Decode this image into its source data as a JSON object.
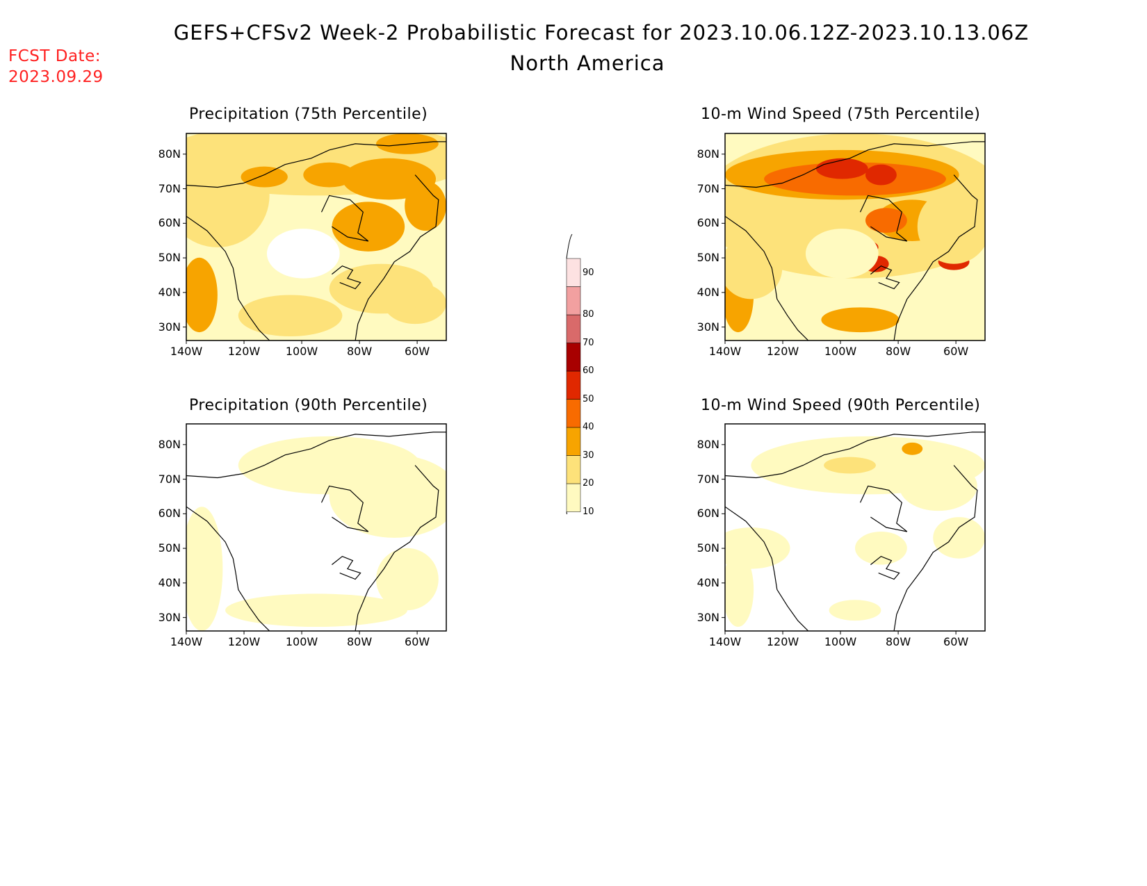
{
  "header": {
    "title": "GEFS+CFSv2 Week-2 Probabilistic Forecast for 2023.10.06.12Z-2023.10.13.06Z",
    "region": "North America",
    "fcst_label": "FCST Date:",
    "fcst_date": "2023.09.29"
  },
  "panels": [
    {
      "id": "p1",
      "title": "Precipitation (75th Percentile)"
    },
    {
      "id": "p2",
      "title": "10-m Wind Speed (75th Percentile)"
    },
    {
      "id": "p3",
      "title": "Precipitation (90th Percentile)"
    },
    {
      "id": "p4",
      "title": "10-m Wind Speed (90th Percentile)"
    }
  ],
  "axes": {
    "lat_labels": [
      "80N",
      "70N",
      "60N",
      "50N",
      "40N",
      "30N"
    ],
    "lon_labels": [
      "140W",
      "120W",
      "100W",
      "80W",
      "60W"
    ]
  },
  "colorbar": {
    "levels": [
      "10",
      "20",
      "30",
      "40",
      "50",
      "60",
      "70",
      "80",
      "90"
    ],
    "colors": [
      "#fffac0",
      "#fde27a",
      "#f7a400",
      "#f86b00",
      "#e02800",
      "#a80000",
      "#d96a6a",
      "#f2a0a0",
      "#fde2e2"
    ]
  }
}
